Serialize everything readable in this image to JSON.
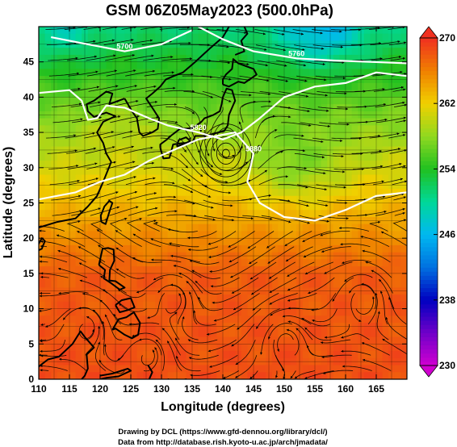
{
  "chart_data": {
    "type": "heatmap",
    "title": "GSM 06Z05May2023 (500.0hPa)",
    "xlabel": "Longitude (degrees)",
    "ylabel": "Latitude (degrees)",
    "xlim": [
      110,
      170
    ],
    "ylim": [
      0,
      50
    ],
    "x_ticks": [
      "110",
      "115",
      "120",
      "125",
      "130",
      "135",
      "140",
      "145",
      "150",
      "155",
      "160",
      "165"
    ],
    "y_ticks": [
      "0",
      "5",
      "10",
      "15",
      "20",
      "25",
      "30",
      "35",
      "40",
      "45"
    ],
    "colorbar": {
      "range": [
        230,
        270
      ],
      "ticks": [
        "230",
        "238",
        "246",
        "254",
        "262",
        "270"
      ],
      "stops": [
        {
          "v": 230,
          "color": "#d000d0"
        },
        {
          "v": 234,
          "color": "#7000c8"
        },
        {
          "v": 238,
          "color": "#0000c0"
        },
        {
          "v": 242,
          "color": "#0070e0"
        },
        {
          "v": 246,
          "color": "#00b8f0"
        },
        {
          "v": 250,
          "color": "#00d898"
        },
        {
          "v": 254,
          "color": "#20c020"
        },
        {
          "v": 258,
          "color": "#90d820"
        },
        {
          "v": 262,
          "color": "#f0d000"
        },
        {
          "v": 266,
          "color": "#f08000"
        },
        {
          "v": 270,
          "color": "#f03020"
        }
      ]
    },
    "field_description": "Temperature-like shaded field at 500 hPa with wind streamlines; cold (cyan/green) in north, warm (red) in south",
    "contours": [
      {
        "label": "5700",
        "points": [
          [
            112,
            48.5
          ],
          [
            118,
            47.5
          ],
          [
            124,
            46.5
          ],
          [
            130,
            47.5
          ],
          [
            135,
            49.5
          ]
        ]
      },
      {
        "label": "5760",
        "points": [
          [
            136,
            50
          ],
          [
            140,
            48.2
          ],
          [
            145,
            46.5
          ],
          [
            152,
            45.5
          ],
          [
            158,
            45.2
          ],
          [
            164,
            45
          ],
          [
            170,
            44.8
          ]
        ]
      },
      {
        "label": "5820",
        "points": [
          [
            110,
            40.6
          ],
          [
            115,
            41
          ],
          [
            117,
            39.5
          ],
          [
            118,
            36.8
          ],
          [
            119.5,
            37
          ],
          [
            121,
            38.8
          ],
          [
            124,
            38.5
          ],
          [
            128,
            37
          ],
          [
            131,
            36
          ],
          [
            136,
            35
          ],
          [
            140,
            34
          ],
          [
            143,
            35
          ],
          [
            146,
            37
          ],
          [
            150,
            40
          ],
          [
            155,
            41.5
          ],
          [
            160,
            42
          ],
          [
            165,
            43.5
          ],
          [
            170,
            43
          ]
        ]
      },
      {
        "label": "5880",
        "points": [
          [
            110,
            25.5
          ],
          [
            116,
            26.5
          ],
          [
            120,
            28
          ],
          [
            124,
            29
          ],
          [
            128,
            31
          ],
          [
            132,
            32.5
          ],
          [
            136,
            34
          ],
          [
            142,
            35
          ],
          [
            145,
            32
          ],
          [
            144,
            28
          ],
          [
            146,
            25
          ],
          [
            150,
            23
          ],
          [
            155,
            22.5
          ],
          [
            160,
            24
          ],
          [
            165,
            26
          ],
          [
            170,
            26.5
          ]
        ]
      }
    ],
    "contour_labels": [
      "5700",
      "5760",
      "5820",
      "5880"
    ],
    "cyclone_center": [
      140.5,
      32
    ],
    "colorbar_arrows": "both"
  },
  "footer": {
    "line1": "Drawing by DCL (https://www.gfd-dennou.org/library/dcl/)",
    "line2": "Data from http://database.rish.kyoto-u.ac.jp/arch/jmadata/"
  }
}
